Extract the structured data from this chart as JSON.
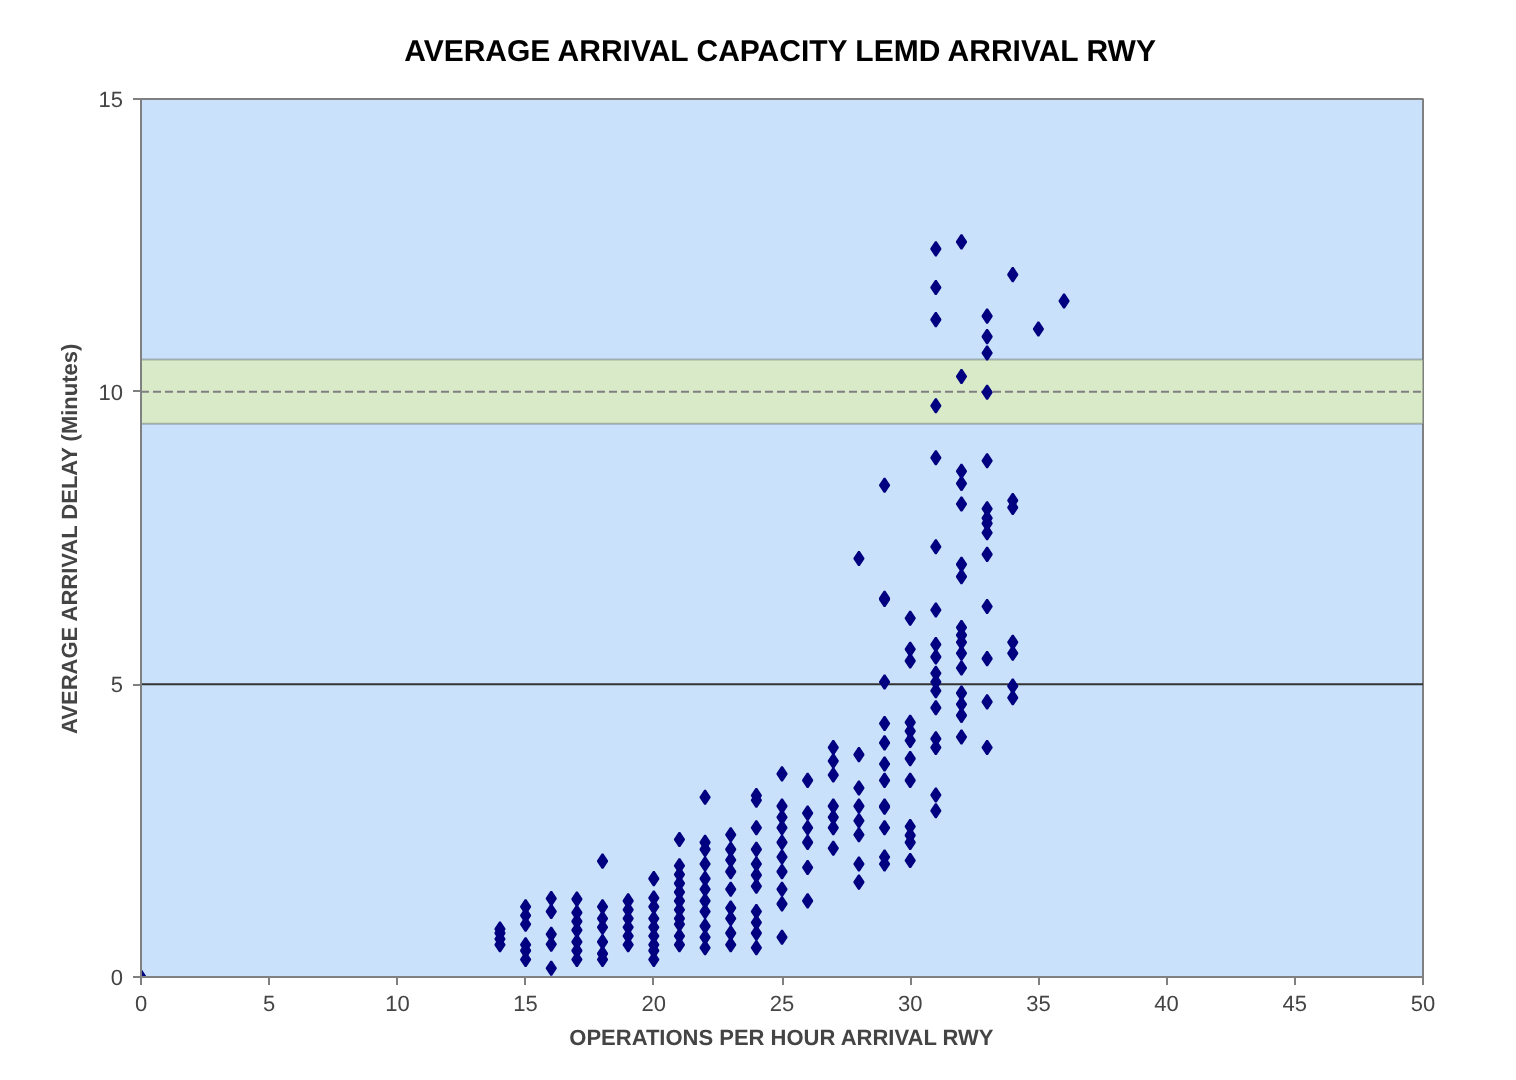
{
  "chart_data": {
    "type": "scatter",
    "title": "AVERAGE ARRIVAL CAPACITY LEMD ARRIVAL RWY",
    "xlabel": "OPERATIONS PER HOUR ARRIVAL RWY",
    "ylabel": "AVERAGE ARRIVAL DELAY (Minutes)",
    "marker": "diamond",
    "grid": false,
    "xlim": [
      0,
      50
    ],
    "xticks": [
      0,
      5,
      10,
      15,
      20,
      25,
      30,
      35,
      40,
      45,
      50
    ],
    "ylim": [
      0,
      15
    ],
    "yticks": [
      0,
      5,
      10,
      15
    ],
    "ref_lines": [
      {
        "axis": "y",
        "value": 5,
        "color": "#333333",
        "line_style": "solid"
      },
      {
        "axis": "y",
        "value": 10,
        "color": "#808080",
        "line_style": "dashed"
      }
    ],
    "bands": [
      {
        "axis": "y",
        "from": 9.45,
        "to": 10.55,
        "color": "#d8eac8"
      }
    ],
    "series": [
      {
        "color": "#000080",
        "x": [
          0,
          14,
          14,
          14,
          14,
          15,
          15,
          15,
          15,
          15,
          15,
          16,
          16,
          16,
          16,
          16,
          17,
          17,
          17,
          17,
          17,
          17,
          17,
          18,
          18,
          18,
          18,
          18,
          18,
          18,
          19,
          19,
          19,
          19,
          19,
          19,
          20,
          20,
          20,
          20,
          20,
          20,
          20,
          20,
          20,
          21,
          21,
          21,
          21,
          21,
          21,
          21,
          21,
          21,
          21,
          21,
          22,
          22,
          22,
          22,
          22,
          22,
          22,
          22,
          22,
          22,
          22,
          23,
          23,
          23,
          23,
          23,
          23,
          23,
          23,
          23,
          24,
          24,
          24,
          24,
          24,
          24,
          24,
          24,
          24,
          24,
          24,
          25,
          25,
          25,
          25,
          25,
          25,
          25,
          25,
          25,
          25,
          26,
          26,
          26,
          26,
          26,
          26,
          27,
          27,
          27,
          27,
          27,
          27,
          27,
          28,
          28,
          28,
          28,
          28,
          28,
          28,
          28,
          29,
          29,
          29,
          29,
          29,
          29,
          29,
          29,
          29,
          29,
          29,
          29,
          29,
          30,
          30,
          30,
          30,
          30,
          30,
          30,
          30,
          30,
          30,
          30,
          30,
          31,
          31,
          31,
          31,
          31,
          31,
          31,
          31,
          31,
          31,
          31,
          31,
          31,
          31,
          31,
          31,
          31,
          32,
          32,
          32,
          32,
          32,
          32,
          32,
          32,
          32,
          32,
          32,
          32,
          32,
          32,
          32,
          32,
          33,
          33,
          33,
          33,
          33,
          33,
          33,
          33,
          33,
          33,
          33,
          33,
          33,
          33,
          34,
          34,
          34,
          34,
          34,
          34,
          34,
          35,
          36
        ],
        "values": [
          0,
          0.55,
          0.65,
          0.75,
          0.82,
          1.2,
          1.05,
          0.9,
          0.55,
          0.45,
          0.3,
          1.34,
          1.12,
          0.73,
          0.56,
          0.15,
          1.33,
          1.1,
          0.95,
          0.8,
          0.6,
          0.45,
          0.3,
          1.98,
          1.2,
          1.0,
          0.85,
          0.6,
          0.4,
          0.3,
          1.3,
          1.15,
          1.0,
          0.85,
          0.7,
          0.55,
          1.68,
          1.35,
          1.2,
          1.0,
          0.85,
          0.7,
          0.55,
          0.45,
          0.3,
          2.35,
          1.9,
          1.75,
          1.6,
          1.45,
          1.3,
          1.15,
          1.0,
          0.9,
          0.7,
          0.55,
          3.07,
          2.3,
          2.18,
          1.93,
          1.68,
          1.5,
          1.3,
          1.12,
          0.87,
          0.68,
          0.5,
          2.43,
          2.18,
          2.0,
          1.8,
          1.5,
          1.18,
          1.0,
          0.75,
          0.55,
          3.1,
          3.02,
          2.55,
          2.18,
          1.93,
          1.74,
          1.55,
          1.12,
          0.93,
          0.75,
          0.5,
          3.47,
          2.92,
          2.73,
          2.55,
          2.3,
          2.05,
          1.8,
          1.5,
          1.25,
          0.68,
          3.36,
          2.8,
          2.55,
          2.3,
          1.87,
          1.3,
          3.92,
          3.69,
          3.45,
          2.92,
          2.73,
          2.55,
          2.2,
          7.15,
          3.8,
          3.23,
          2.92,
          2.67,
          2.43,
          1.93,
          1.62,
          8.4,
          6.47,
          5.04,
          4.33,
          4.0,
          3.64,
          3.36,
          2.92,
          2.9,
          2.55,
          2.05,
          1.93,
          6.45,
          6.13,
          5.6,
          5.4,
          4.35,
          4.2,
          4.04,
          3.73,
          3.36,
          2.57,
          2.42,
          2.3,
          1.99,
          12.44,
          11.78,
          11.23,
          9.76,
          8.87,
          7.35,
          6.27,
          5.68,
          5.47,
          5.19,
          5.04,
          4.89,
          4.6,
          4.07,
          3.92,
          3.11,
          2.84,
          12.56,
          10.26,
          8.64,
          8.43,
          8.08,
          7.05,
          6.84,
          5.97,
          5.84,
          5.72,
          5.53,
          5.28,
          4.85,
          4.66,
          4.47,
          4.1,
          11.29,
          10.94,
          10.66,
          9.99,
          8.82,
          8.0,
          7.84,
          7.75,
          7.59,
          7.22,
          6.33,
          5.44,
          4.7,
          3.92,
          12.0,
          8.14,
          8.02,
          5.72,
          5.53,
          4.97,
          4.77,
          11.07,
          11.55
        ]
      }
    ]
  }
}
